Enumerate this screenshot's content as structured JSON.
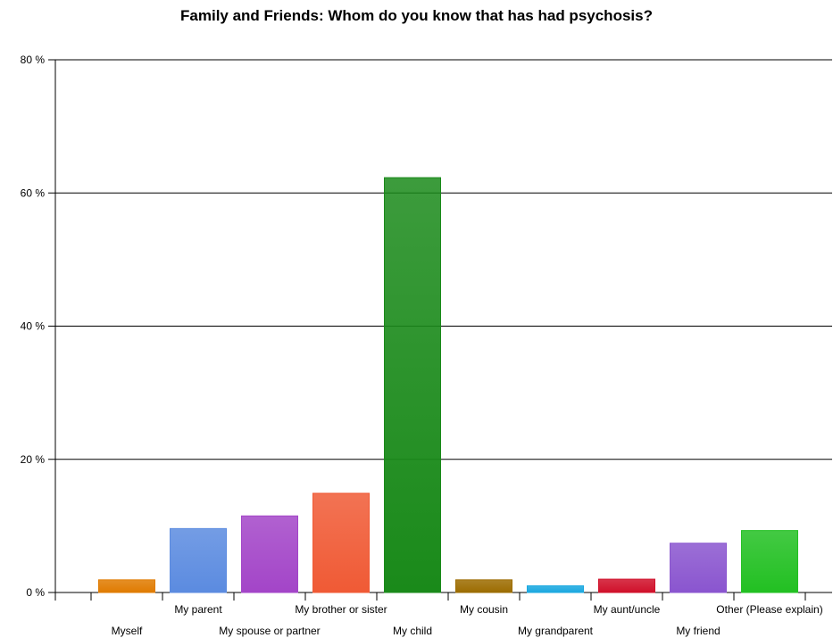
{
  "chart_data": {
    "type": "bar",
    "title": "Family and Friends: Whom do you know that has had psychosis?",
    "xlabel": "",
    "ylabel": "",
    "ylim": [
      0,
      80
    ],
    "yticks": [
      0,
      20,
      40,
      60,
      80
    ],
    "ytick_labels": [
      "0 %",
      "20 %",
      "40 %",
      "60 %",
      "80 %"
    ],
    "grid": true,
    "categories": [
      "Myself",
      "My parent",
      "My spouse or partner",
      "My brother or sister",
      "My child",
      "My cousin",
      "My grandparent",
      "My aunt/uncle",
      "My friend",
      "Other (Please explain)"
    ],
    "values": [
      1.9,
      9.6,
      11.5,
      14.9,
      62.3,
      1.9,
      1.0,
      2.0,
      7.4,
      9.3
    ],
    "colors": [
      "#e07b00",
      "#5b8be0",
      "#a345c8",
      "#f05a35",
      "#1a8a1a",
      "#9c6c00",
      "#1aa8e0",
      "#d0102a",
      "#8a55cf",
      "#22c022"
    ]
  }
}
